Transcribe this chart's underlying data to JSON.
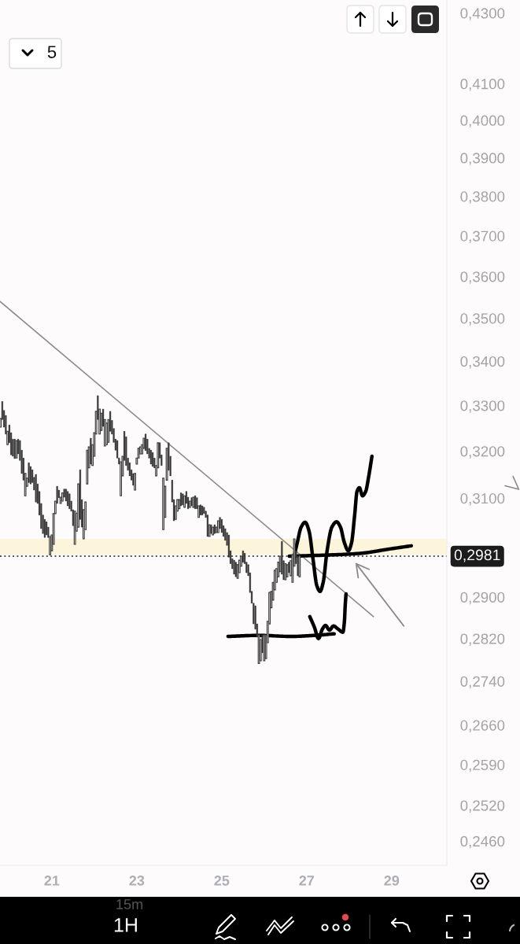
{
  "chart_data": {
    "type": "candlestick",
    "log": true,
    "xlim": [
      19.78,
      30.3
    ],
    "ylim": [
      0.242,
      0.4338
    ],
    "xticks": [
      21,
      23,
      25,
      27,
      29
    ],
    "yticks": [
      {
        "value": 0.43,
        "label": "0,4300"
      },
      {
        "value": 0.41,
        "label": "0,4100"
      },
      {
        "value": 0.4,
        "label": "0,4000"
      },
      {
        "value": 0.39,
        "label": "0,3900"
      },
      {
        "value": 0.38,
        "label": "0,3800"
      },
      {
        "value": 0.37,
        "label": "0,3700"
      },
      {
        "value": 0.36,
        "label": "0,3600"
      },
      {
        "value": 0.35,
        "label": "0,3500"
      },
      {
        "value": 0.34,
        "label": "0,3400"
      },
      {
        "value": 0.33,
        "label": "0,3300"
      },
      {
        "value": 0.32,
        "label": "0,3200"
      },
      {
        "value": 0.31,
        "label": "0,3100"
      },
      {
        "value": 0.29,
        "label": "0,2900"
      },
      {
        "value": 0.282,
        "label": "0,2820"
      },
      {
        "value": 0.274,
        "label": "0,2740"
      },
      {
        "value": 0.266,
        "label": "0,2660"
      },
      {
        "value": 0.259,
        "label": "0,2590"
      },
      {
        "value": 0.252,
        "label": "0,2520"
      },
      {
        "value": 0.246,
        "label": "0,2460"
      }
    ],
    "bands": [
      {
        "axis": "y",
        "from": 0.2984,
        "to": 0.3016,
        "color": "#fcf5dc"
      }
    ],
    "ref_lines": [
      {
        "axis": "y",
        "value": 0.2981,
        "label": "0,2981",
        "color": "#1c1c1c",
        "line_style": "dotted"
      }
    ],
    "annotations": [
      "5",
      "1H",
      "15m"
    ],
    "series": [
      {
        "color": "#3a3a3a",
        "x": [
          19.792,
          19.833,
          19.875,
          19.917,
          19.958,
          20,
          20.042,
          20.083,
          20.125,
          20.167,
          20.208,
          20.25,
          20.292,
          20.333,
          20.375,
          20.417,
          20.458,
          20.5,
          20.542,
          20.583,
          20.625,
          20.667,
          20.708,
          20.75,
          20.792,
          20.833,
          20.875,
          20.917,
          20.958,
          21,
          21.042,
          21.083,
          21.125,
          21.167,
          21.208,
          21.25,
          21.292,
          21.333,
          21.375,
          21.417,
          21.458,
          21.5,
          21.542,
          21.583,
          21.625,
          21.667,
          21.708,
          21.75,
          21.792,
          21.833,
          21.875,
          21.917,
          21.958,
          22,
          22.042,
          22.083,
          22.125,
          22.167,
          22.208,
          22.25,
          22.292,
          22.333,
          22.375,
          22.417,
          22.458,
          22.5,
          22.542,
          22.583,
          22.625,
          22.667,
          22.708,
          22.75,
          22.792,
          22.833,
          22.875,
          22.917,
          22.958,
          23,
          23.042,
          23.083,
          23.125,
          23.167,
          23.208,
          23.25,
          23.292,
          23.333,
          23.375,
          23.417,
          23.458,
          23.5,
          23.542,
          23.583,
          23.625,
          23.667,
          23.708,
          23.75,
          23.792,
          23.833,
          23.875,
          23.917,
          23.958,
          24,
          24.042,
          24.083,
          24.125,
          24.167,
          24.208,
          24.25,
          24.292,
          24.333,
          24.375,
          24.417,
          24.458,
          24.5,
          24.542,
          24.583,
          24.625,
          24.667,
          24.708,
          24.75,
          24.792,
          24.833,
          24.875,
          24.917,
          24.958,
          25,
          25.042,
          25.083,
          25.125,
          25.167,
          25.208,
          25.25,
          25.292,
          25.333,
          25.375,
          25.417,
          25.458,
          25.5,
          25.542,
          25.583,
          25.625,
          25.667,
          25.708,
          25.75,
          25.792,
          25.833,
          25.875,
          25.917,
          25.958,
          26,
          26.042,
          26.083,
          26.125,
          26.167,
          26.208,
          26.25,
          26.292,
          26.333,
          26.375,
          26.417,
          26.458,
          26.5,
          26.542,
          26.583,
          26.625,
          26.667,
          26.708,
          26.75,
          26.792,
          26.833
        ],
        "ohlc": [
          [
            0.3252,
            0.3271,
            0.3252,
            0.3271
          ],
          [
            0.3309,
            0.3309,
            0.3269,
            0.3269
          ],
          [
            0.3289,
            0.3289,
            0.3252,
            0.3252
          ],
          [
            0.3278,
            0.3278,
            0.3237,
            0.3237
          ],
          [
            0.3214,
            0.3243,
            0.3214,
            0.3243
          ],
          [
            0.3257,
            0.3257,
            0.3218,
            0.3218
          ],
          [
            0.324,
            0.324,
            0.3192,
            0.3192
          ],
          [
            0.3226,
            0.3226,
            0.3189,
            0.3189
          ],
          [
            0.3226,
            0.3226,
            0.3184,
            0.3184
          ],
          [
            0.3185,
            0.3223,
            0.3185,
            0.3223
          ],
          [
            0.3226,
            0.3226,
            0.3194,
            0.3194
          ],
          [
            0.3223,
            0.3223,
            0.318,
            0.318
          ],
          [
            0.3202,
            0.3202,
            0.3152,
            0.3152
          ],
          [
            0.3185,
            0.3185,
            0.3138,
            0.3138
          ],
          [
            0.3105,
            0.3152,
            0.3105,
            0.3152
          ],
          [
            0.3125,
            0.3142,
            0.3125,
            0.3142
          ],
          [
            0.3175,
            0.3175,
            0.3133,
            0.3133
          ],
          [
            0.3167,
            0.3167,
            0.313,
            0.313
          ],
          [
            0.316,
            0.316,
            0.3133,
            0.3133
          ],
          [
            0.3144,
            0.3144,
            0.3117,
            0.3117
          ],
          [
            0.315,
            0.315,
            0.3092,
            0.3092
          ],
          [
            0.313,
            0.313,
            0.3089,
            0.3089
          ],
          [
            0.3114,
            0.3114,
            0.3065,
            0.3065
          ],
          [
            0.3089,
            0.3089,
            0.3037,
            0.3037
          ],
          [
            0.3065,
            0.3065,
            0.3027,
            0.3027
          ],
          [
            0.3056,
            0.3056,
            0.3019,
            0.3019
          ],
          [
            0.3051,
            0.3051,
            0.3024,
            0.3024
          ],
          [
            0.304,
            0.304,
            0.3019,
            0.3019
          ],
          [
            0.2984,
            0.3021,
            0.2984,
            0.3021
          ],
          [
            0.2992,
            0.3024,
            0.2992,
            0.3024
          ],
          [
            0.3005,
            0.3068,
            0.3005,
            0.3068
          ],
          [
            0.3068,
            0.3094,
            0.3068,
            0.3094
          ],
          [
            0.3125,
            0.3125,
            0.3089,
            0.3089
          ],
          [
            0.3117,
            0.3117,
            0.3101,
            0.3101
          ],
          [
            0.3089,
            0.3102,
            0.3089,
            0.3102
          ],
          [
            0.3094,
            0.3111,
            0.3094,
            0.3111
          ],
          [
            0.3119,
            0.3119,
            0.3102,
            0.3102
          ],
          [
            0.3119,
            0.3119,
            0.3094,
            0.3094
          ],
          [
            0.3114,
            0.3114,
            0.3084,
            0.3084
          ],
          [
            0.3109,
            0.3109,
            0.3078,
            0.3078
          ],
          [
            0.3094,
            0.3094,
            0.3073,
            0.3073
          ],
          [
            0.3076,
            0.3076,
            0.3043,
            0.3043
          ],
          [
            0.3005,
            0.3073,
            0.3005,
            0.3073
          ],
          [
            0.3032,
            0.3069,
            0.3032,
            0.3069
          ],
          [
            0.304,
            0.313,
            0.304,
            0.313
          ],
          [
            0.316,
            0.316,
            0.3056,
            0.3056
          ],
          [
            0.3097,
            0.3097,
            0.304,
            0.304
          ],
          [
            0.3016,
            0.3076,
            0.3016,
            0.3076
          ],
          [
            0.3035,
            0.3092,
            0.3035,
            0.3092
          ],
          [
            0.313,
            0.3202,
            0.313,
            0.3202
          ],
          [
            0.3164,
            0.3209,
            0.3164,
            0.3209
          ],
          [
            0.3228,
            0.3228,
            0.3172,
            0.3172
          ],
          [
            0.3169,
            0.3214,
            0.3169,
            0.3214
          ],
          [
            0.3189,
            0.324,
            0.3189,
            0.324
          ],
          [
            0.3237,
            0.3287,
            0.3237,
            0.3287
          ],
          [
            0.3322,
            0.3322,
            0.3269,
            0.3269
          ],
          [
            0.3237,
            0.3292,
            0.3237,
            0.3292
          ],
          [
            0.3245,
            0.3283,
            0.3245,
            0.3283
          ],
          [
            0.3292,
            0.3292,
            0.3254,
            0.3254
          ],
          [
            0.3211,
            0.3269,
            0.3211,
            0.3269
          ],
          [
            0.3214,
            0.3261,
            0.3214,
            0.3261
          ],
          [
            0.3219,
            0.3269,
            0.3219,
            0.3269
          ],
          [
            0.3287,
            0.3287,
            0.3243,
            0.3243
          ],
          [
            0.3267,
            0.3267,
            0.3237,
            0.3237
          ],
          [
            0.3249,
            0.3249,
            0.3219,
            0.3219
          ],
          [
            0.3226,
            0.3226,
            0.3202,
            0.3202
          ],
          [
            0.3223,
            0.3223,
            0.3185,
            0.3185
          ],
          [
            0.3185,
            0.3185,
            0.3172,
            0.3172
          ],
          [
            0.3105,
            0.3177,
            0.3105,
            0.3177
          ],
          [
            0.3147,
            0.3189,
            0.3147,
            0.3189
          ],
          [
            0.3243,
            0.3243,
            0.318,
            0.318
          ],
          [
            0.3231,
            0.3231,
            0.3169,
            0.3169
          ],
          [
            0.3185,
            0.3185,
            0.3159,
            0.3159
          ],
          [
            0.3175,
            0.3175,
            0.3147,
            0.3147
          ],
          [
            0.316,
            0.316,
            0.3138,
            0.3138
          ],
          [
            0.3152,
            0.3152,
            0.3127,
            0.3127
          ],
          [
            0.3117,
            0.3152,
            0.3117,
            0.3152
          ],
          [
            0.3172,
            0.3185,
            0.3172,
            0.3185
          ],
          [
            0.3185,
            0.3206,
            0.3185,
            0.3206
          ],
          [
            0.3194,
            0.3209,
            0.3194,
            0.3209
          ],
          [
            0.3194,
            0.3214,
            0.3194,
            0.3214
          ],
          [
            0.3206,
            0.3228,
            0.3206,
            0.3228
          ],
          [
            0.3237,
            0.3237,
            0.3201,
            0.3201
          ],
          [
            0.3226,
            0.3226,
            0.3194,
            0.3194
          ],
          [
            0.3206,
            0.3206,
            0.3185,
            0.3185
          ],
          [
            0.3202,
            0.3202,
            0.3172,
            0.3172
          ],
          [
            0.3197,
            0.3197,
            0.3167,
            0.3167
          ],
          [
            0.3185,
            0.3185,
            0.3164,
            0.3164
          ],
          [
            0.3147,
            0.3169,
            0.3147,
            0.3169
          ],
          [
            0.3164,
            0.3218,
            0.3164,
            0.3218
          ],
          [
            0.3218,
            0.3218,
            0.3185,
            0.3185
          ],
          [
            0.3192,
            0.3192,
            0.3169,
            0.3169
          ],
          [
            0.3035,
            0.3142,
            0.3035,
            0.3142
          ],
          [
            0.306,
            0.3125,
            0.306,
            0.3125
          ],
          [
            0.3138,
            0.3206,
            0.3138,
            0.3206
          ],
          [
            0.3218,
            0.3218,
            0.3159,
            0.3159
          ],
          [
            0.3189,
            0.3189,
            0.3147,
            0.3147
          ],
          [
            0.3138,
            0.3138,
            0.3092,
            0.3092
          ],
          [
            0.3097,
            0.3097,
            0.3053,
            0.3053
          ],
          [
            0.3056,
            0.3084,
            0.3056,
            0.3084
          ],
          [
            0.3073,
            0.3097,
            0.3073,
            0.3097
          ],
          [
            0.3078,
            0.3097,
            0.3078,
            0.3097
          ],
          [
            0.3111,
            0.3111,
            0.3084,
            0.3084
          ],
          [
            0.3109,
            0.3109,
            0.3086,
            0.3086
          ],
          [
            0.3081,
            0.3105,
            0.3081,
            0.3105
          ],
          [
            0.3114,
            0.3114,
            0.3089,
            0.3089
          ],
          [
            0.3102,
            0.3102,
            0.3078,
            0.3078
          ],
          [
            0.3081,
            0.3094,
            0.3081,
            0.3094
          ],
          [
            0.3101,
            0.3101,
            0.3084,
            0.3084
          ],
          [
            0.3081,
            0.3102,
            0.3081,
            0.3102
          ],
          [
            0.3105,
            0.3105,
            0.3078,
            0.3078
          ],
          [
            0.3101,
            0.3101,
            0.3078,
            0.3078
          ],
          [
            0.306,
            0.3084,
            0.306,
            0.3084
          ],
          [
            0.3086,
            0.3086,
            0.3065,
            0.3065
          ],
          [
            0.3084,
            0.3084,
            0.3065,
            0.3065
          ],
          [
            0.3081,
            0.3081,
            0.3068,
            0.3068
          ],
          [
            0.3073,
            0.3073,
            0.306,
            0.306
          ],
          [
            0.3065,
            0.3065,
            0.3021,
            0.3021
          ],
          [
            0.3021,
            0.3045,
            0.3021,
            0.3045
          ],
          [
            0.3045,
            0.3045,
            0.3027,
            0.3027
          ],
          [
            0.3024,
            0.304,
            0.3024,
            0.304
          ],
          [
            0.3045,
            0.3045,
            0.3027,
            0.3027
          ],
          [
            0.3029,
            0.304,
            0.3029,
            0.304
          ],
          [
            0.3029,
            0.3053,
            0.3029,
            0.3053
          ],
          [
            0.306,
            0.306,
            0.3037,
            0.3037
          ],
          [
            0.3056,
            0.3056,
            0.3029,
            0.3029
          ],
          [
            0.3043,
            0.3043,
            0.3021,
            0.3021
          ],
          [
            0.3037,
            0.3037,
            0.3013,
            0.3013
          ],
          [
            0.3029,
            0.3029,
            0.3003,
            0.3003
          ],
          [
            0.3024,
            0.3024,
            0.2979,
            0.2979
          ],
          [
            0.2992,
            0.2992,
            0.2966,
            0.2966
          ],
          [
            0.2976,
            0.2976,
            0.2956,
            0.2956
          ],
          [
            0.2973,
            0.2973,
            0.2945,
            0.2945
          ],
          [
            0.2969,
            0.2969,
            0.294,
            0.294
          ],
          [
            0.2937,
            0.2964,
            0.2937,
            0.2964
          ],
          [
            0.2948,
            0.2973,
            0.2948,
            0.2973
          ],
          [
            0.2961,
            0.2981,
            0.2961,
            0.2981
          ],
          [
            0.2992,
            0.2992,
            0.2969,
            0.2969
          ],
          [
            0.2987,
            0.2987,
            0.2966,
            0.2966
          ],
          [
            0.2969,
            0.2969,
            0.2948,
            0.2948
          ],
          [
            0.2964,
            0.2964,
            0.2942,
            0.2942
          ],
          [
            0.2948,
            0.2948,
            0.2909,
            0.2909
          ],
          [
            0.2911,
            0.2911,
            0.2888,
            0.2888
          ],
          [
            0.2888,
            0.2888,
            0.2848,
            0.2848
          ],
          [
            0.2883,
            0.2883,
            0.2838,
            0.2838
          ],
          [
            0.2848,
            0.2848,
            0.2823,
            0.2823
          ],
          [
            0.2773,
            0.2827,
            0.2773,
            0.2827
          ],
          [
            0.2778,
            0.2818,
            0.2778,
            0.2818
          ],
          [
            0.2827,
            0.2827,
            0.2793,
            0.2793
          ],
          [
            0.2778,
            0.2827,
            0.2778,
            0.2827
          ],
          [
            0.2782,
            0.2827,
            0.2782,
            0.2827
          ],
          [
            0.2812,
            0.2853,
            0.2812,
            0.2853
          ],
          [
            0.2848,
            0.2909,
            0.2848,
            0.2909
          ],
          [
            0.2879,
            0.2911,
            0.2879,
            0.2911
          ],
          [
            0.2894,
            0.2929,
            0.2894,
            0.2929
          ],
          [
            0.2914,
            0.2953,
            0.2914,
            0.2953
          ],
          [
            0.2929,
            0.2956,
            0.2929,
            0.2956
          ],
          [
            0.294,
            0.2969,
            0.294,
            0.2969
          ],
          [
            0.295,
            0.2981,
            0.295,
            0.2981
          ],
          [
            0.3011,
            0.3011,
            0.2945,
            0.2945
          ],
          [
            0.2972,
            0.2972,
            0.2934,
            0.2934
          ],
          [
            0.2934,
            0.2966,
            0.2934,
            0.2966
          ],
          [
            0.294,
            0.2964,
            0.294,
            0.2964
          ],
          [
            0.2969,
            0.2969,
            0.2948,
            0.2948
          ],
          [
            0.2942,
            0.2972,
            0.2942,
            0.2972
          ],
          [
            0.2929,
            0.2984,
            0.2929,
            0.2984
          ],
          [
            0.2961,
            0.3016,
            0.2961,
            0.3016
          ],
          [
            0.2992,
            0.2992,
            0.2966,
            0.2966
          ],
          [
            0.2981,
            0.2981,
            0.2942,
            0.2942
          ],
          [
            0.294,
            0.2985,
            0.294,
            0.2981
          ]
        ]
      },
      {
        "type": "line",
        "color": "#8a8a8a",
        "x": [
          19.78,
          28.574
        ],
        "values": [
          0.354,
          0.2862
        ]
      },
      {
        "type": "line",
        "color": "#000000",
        "x": [
          26.685,
          26.778,
          26.87,
          26.963,
          27.056,
          27.148,
          27.241,
          27.315,
          27.389,
          27.481,
          27.593,
          27.704,
          27.796,
          27.889,
          27.981,
          28.056,
          28.13,
          28.185,
          28.241,
          28.315,
          28.389,
          28.463,
          28.537
        ],
        "values": [
          0.2973,
          0.3008,
          0.304,
          0.305,
          0.3032,
          0.2976,
          0.2922,
          0.2911,
          0.2929,
          0.2992,
          0.304,
          0.3051,
          0.304,
          0.3008,
          0.2992,
          0.3008,
          0.3065,
          0.3114,
          0.3122,
          0.3105,
          0.3114,
          0.3147,
          0.3189
        ]
      },
      {
        "type": "line",
        "color": "#000000",
        "x": [
          26.593,
          27.685,
          28.296,
          28.907,
          29.463
        ],
        "values": [
          0.2981,
          0.2984,
          0.2987,
          0.2995,
          0.3002
        ]
      },
      {
        "type": "line",
        "color": "#000000",
        "x": [
          25.148,
          25.889,
          26.63,
          27.185,
          27.648
        ],
        "values": [
          0.2824,
          0.2826,
          0.2824,
          0.2826,
          0.2829
        ]
      },
      {
        "type": "line",
        "color": "#000000",
        "x": [
          27.074,
          27.185,
          27.278,
          27.37,
          27.444,
          27.537,
          27.63,
          27.741,
          27.852,
          27.889,
          27.907,
          27.926
        ],
        "values": [
          0.2862,
          0.2841,
          0.282,
          0.2838,
          0.2845,
          0.2836,
          0.2844,
          0.2838,
          0.2832,
          0.2853,
          0.2883,
          0.2906
        ]
      }
    ]
  }
}
